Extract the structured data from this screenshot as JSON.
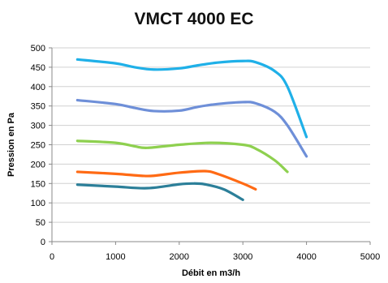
{
  "chart_data": {
    "type": "line",
    "title": "VMCT 4000 EC",
    "xlabel": "Débit en m3/h",
    "ylabel": "Pression en Pa",
    "xlim": [
      0,
      5000
    ],
    "ylim": [
      0,
      500
    ],
    "x_ticks": [
      0,
      1000,
      2000,
      3000,
      4000,
      5000
    ],
    "y_ticks": [
      0,
      50,
      100,
      150,
      200,
      250,
      300,
      350,
      400,
      450,
      500
    ],
    "grid": true,
    "legend": "none",
    "series": [
      {
        "color": "#1fb0e8",
        "x": [
          400,
          1000,
          1300,
          1600,
          2000,
          2300,
          2600,
          3000,
          3200,
          3500,
          3700,
          4000
        ],
        "y": [
          470,
          460,
          450,
          444,
          447,
          455,
          462,
          466,
          463,
          440,
          400,
          270
        ]
      },
      {
        "color": "#6e8fd8",
        "x": [
          400,
          1000,
          1300,
          1600,
          2000,
          2300,
          2600,
          3000,
          3200,
          3500,
          3700,
          4000
        ],
        "y": [
          365,
          355,
          345,
          337,
          338,
          348,
          355,
          360,
          357,
          335,
          300,
          220
        ]
      },
      {
        "color": "#8ed04f",
        "x": [
          400,
          1000,
          1300,
          1500,
          2000,
          2500,
          3000,
          3200,
          3500,
          3700
        ],
        "y": [
          260,
          255,
          246,
          242,
          250,
          255,
          250,
          240,
          210,
          180
        ]
      },
      {
        "color": "#ff6a14",
        "x": [
          400,
          1000,
          1400,
          1600,
          2000,
          2400,
          2600,
          3000,
          3200
        ],
        "y": [
          180,
          175,
          170,
          170,
          178,
          182,
          175,
          150,
          135
        ]
      },
      {
        "color": "#2c7f99",
        "x": [
          400,
          1000,
          1500,
          2000,
          2200,
          2400,
          2700,
          3000
        ],
        "y": [
          147,
          142,
          138,
          148,
          150,
          148,
          135,
          108
        ]
      }
    ]
  }
}
